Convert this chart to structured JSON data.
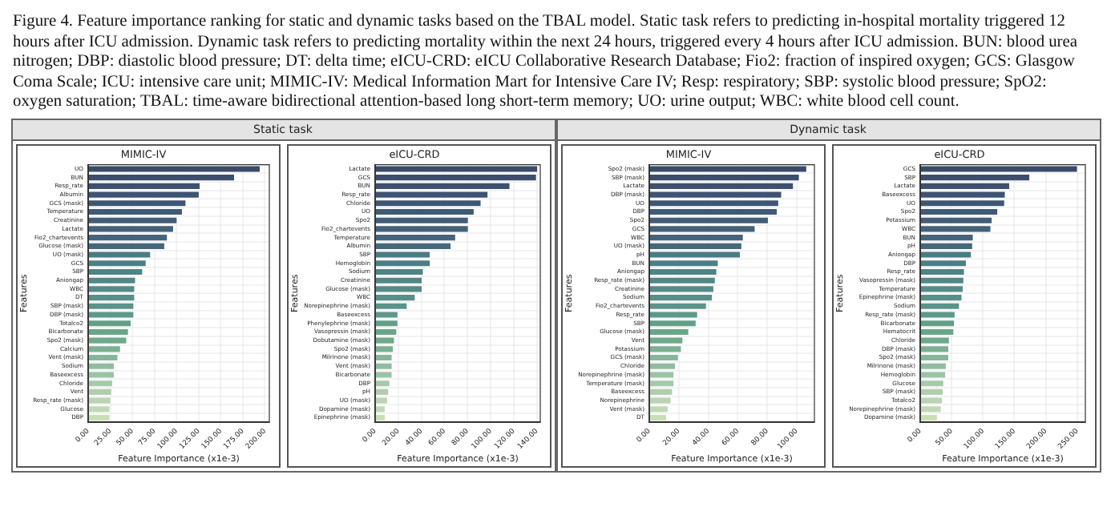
{
  "chart_data": [
    {
      "type": "bar",
      "orientation": "horizontal",
      "subtitle": "Static task",
      "title": "MIMIC-IV",
      "xlabel": "Feature Importance (x1e-3)",
      "ylabel": "Features",
      "grid": true,
      "legend": false,
      "annotations": [
        "Figure 4. Feature importance ranking for static and dynamic tasks based on the TBAL model. Static task refers to predicting in-hospital mortality triggered 12 hours after ICU admission. Dynamic task refers to predicting mortality within the next 24 hours, triggered every 4 hours after ICU admission. BUN: blood urea nitrogen; DBP: diastolic blood pressure; DT: delta time; eICU-CRD: eICU Collaborative Research Database; Fio2: fraction of inspired oxygen; GCS: Glasgow Coma Scale; ICU: intensive care unit; MIMIC-IV: Medical Information Mart for Intensive Care IV; Resp: respiratory; SBP: systolic blood pressure; SpO2: oxygen saturation; TBAL: time-aware bidirectional attention-based long short-term memory; UO: urine output; WBC: white blood cell count."
      ],
      "categories": [
        "UO",
        "BUN",
        "Resp_rate",
        "Albumin",
        "GCS (mask)",
        "Temperature",
        "Creatinine",
        "Lactate",
        "Fio2_chartevents",
        "Glucose (mask)",
        "UO (mask)",
        "GCS",
        "SBP",
        "Aniongap",
        "WBC",
        "DT",
        "SBP (mask)",
        "DBP (mask)",
        "Totalco2",
        "Bicarbonate",
        "Spo2 (mask)",
        "Calcium",
        "Vent (mask)",
        "Sodium",
        "Baseexcess",
        "Chloride",
        "Vent",
        "Resp_rate (mask)",
        "Glucose",
        "DBP"
      ],
      "values": [
        195,
        166,
        127,
        126,
        111,
        107,
        101,
        97,
        90,
        87,
        71,
        66,
        62,
        54,
        53,
        53,
        52,
        52,
        49,
        46,
        44,
        37,
        34,
        30,
        30,
        28,
        27,
        26,
        25,
        25
      ],
      "colors": [
        "#3b4a6b",
        "#3c4d6d",
        "#3d506f",
        "#3e5371",
        "#3f5673",
        "#405a75",
        "#425d77",
        "#436179",
        "#44647b",
        "#45687d",
        "#4a7b83",
        "#4c7f84",
        "#4f8385",
        "#528786",
        "#558b87",
        "#588f88",
        "#5b9389",
        "#5f978a",
        "#63a08a",
        "#6aa58a",
        "#6fa98a",
        "#7bb093",
        "#86b69a",
        "#91bca0",
        "#9cc2a6",
        "#a6c8ab",
        "#b0cdaf",
        "#bad3b2",
        "#c2d8b4",
        "#c9deb6"
      ],
      "xlim": [
        0,
        205
      ],
      "xticks": [
        {
          "value": 0,
          "label": "0.00"
        },
        {
          "value": 25,
          "label": "25.00"
        },
        {
          "value": 50,
          "label": "50.00"
        },
        {
          "value": 75,
          "label": "75.00"
        },
        {
          "value": 100,
          "label": "100.00"
        },
        {
          "value": 125,
          "label": "125.00"
        },
        {
          "value": 150,
          "label": "150.00"
        },
        {
          "value": 175,
          "label": "175.00"
        },
        {
          "value": 200,
          "label": "200.00"
        }
      ]
    },
    {
      "type": "bar",
      "orientation": "horizontal",
      "title": "eICU-CRD",
      "xlabel": "Feature Importance (x1e-3)",
      "ylabel": "Features",
      "grid": true,
      "legend": false,
      "categories": [
        "Lactate",
        "GCS",
        "BUN",
        "Resp_rate",
        "Chloride",
        "UO",
        "Spo2",
        "Fio2_chartevents",
        "Temperature",
        "Albumin",
        "SBP",
        "Hemoglobin",
        "Sodium",
        "Creatinine",
        "Glucose (mask)",
        "WBC",
        "Norepinephrine (mask)",
        "Baseexcess",
        "Phenylephrine (mask)",
        "Vasopressin (mask)",
        "Dobutamine (mask)",
        "Spo2 (mask)",
        "Milrinone (mask)",
        "Vent (mask)",
        "Bicarbonate",
        "DBP",
        "pH",
        "UO (mask)",
        "Dopamine (mask)",
        "Epinephrine (mask)"
      ],
      "values": [
        141,
        140,
        117,
        98,
        92,
        86,
        81,
        81,
        70,
        66,
        48,
        48,
        42,
        41,
        41,
        35,
        28,
        20,
        20,
        19,
        17,
        16,
        15,
        15,
        15,
        13,
        12,
        11,
        9,
        9
      ],
      "colors": [
        "#3b4a6b",
        "#3c4d6d",
        "#3d506f",
        "#3e5371",
        "#3f5673",
        "#405a75",
        "#425d77",
        "#436179",
        "#44647b",
        "#45687d",
        "#4a7b83",
        "#4c7f84",
        "#4f8385",
        "#528786",
        "#558b87",
        "#588f88",
        "#5b9389",
        "#5f978a",
        "#63a08a",
        "#6aa58a",
        "#6fa98a",
        "#7bb093",
        "#86b69a",
        "#91bca0",
        "#9cc2a6",
        "#a6c8ab",
        "#b0cdaf",
        "#bad3b2",
        "#c2d8b4",
        "#c9deb6"
      ],
      "xlim": [
        0,
        143
      ],
      "xticks": [
        {
          "value": 0,
          "label": "0.00"
        },
        {
          "value": 20,
          "label": "20.00"
        },
        {
          "value": 40,
          "label": "40.00"
        },
        {
          "value": 60,
          "label": "60.00"
        },
        {
          "value": 80,
          "label": "80.00"
        },
        {
          "value": 100,
          "label": "100.00"
        },
        {
          "value": 120,
          "label": "120.00"
        },
        {
          "value": 140,
          "label": "140.00"
        }
      ]
    },
    {
      "type": "bar",
      "orientation": "horizontal",
      "subtitle": "Dynamic task",
      "title": "MIMIC-IV",
      "xlabel": "Feature Importance (x1e-3)",
      "ylabel": "Features",
      "grid": true,
      "legend": false,
      "categories": [
        "Spo2 (mask)",
        "SBP (mask)",
        "Lactate",
        "DBP (mask)",
        "UO",
        "DBP",
        "Spo2",
        "GCS",
        "WBC",
        "UO (mask)",
        "pH",
        "BUN",
        "Aniongap",
        "Resp_rate (mask)",
        "Creatinine",
        "Sodium",
        "Fio2_chartevents",
        "Resp_rate",
        "SBP",
        "Glucose (mask)",
        "Vent",
        "Potassium",
        "GCS (mask)",
        "Chloride",
        "Norepinephrine (mask)",
        "Temperature (mask)",
        "Baseexcess",
        "Norepinephrine",
        "Vent (mask)",
        "DT"
      ],
      "values": [
        107,
        102,
        98,
        90,
        88,
        87,
        81,
        72,
        64,
        63,
        62,
        47,
        46,
        45,
        44,
        43,
        39,
        33,
        32,
        27,
        23,
        22,
        20,
        18,
        17,
        17,
        16,
        15,
        13,
        12
      ],
      "colors": [
        "#3b4a6b",
        "#3c4d6d",
        "#3d506f",
        "#3e5371",
        "#3f5673",
        "#405a75",
        "#425d77",
        "#436179",
        "#44647b",
        "#45687d",
        "#4a7b83",
        "#4c7f84",
        "#4f8385",
        "#528786",
        "#558b87",
        "#588f88",
        "#5b9389",
        "#5f978a",
        "#63a08a",
        "#6aa58a",
        "#6fa98a",
        "#7bb093",
        "#86b69a",
        "#91bca0",
        "#9cc2a6",
        "#a6c8ab",
        "#b0cdaf",
        "#bad3b2",
        "#c2d8b4",
        "#c9deb6"
      ],
      "xlim": [
        0,
        112
      ],
      "xticks": [
        {
          "value": 0,
          "label": "0.00"
        },
        {
          "value": 20,
          "label": "20.00"
        },
        {
          "value": 40,
          "label": "40.00"
        },
        {
          "value": 60,
          "label": "60.00"
        },
        {
          "value": 80,
          "label": "80.00"
        },
        {
          "value": 100,
          "label": "100.00"
        }
      ]
    },
    {
      "type": "bar",
      "orientation": "horizontal",
      "title": "eICU-CRD",
      "xlabel": "Feature Importance (x1e-3)",
      "ylabel": "Features",
      "grid": true,
      "legend": false,
      "categories": [
        "GCS",
        "SBP",
        "Lactate",
        "Baseexcess",
        "UO",
        "Spo2",
        "Potassium",
        "WBC",
        "BUN",
        "pH",
        "Aniongap",
        "DBP",
        "Resp_rate",
        "Vasopressin (mask)",
        "Temperature",
        "Epinephrine (mask)",
        "Sodium",
        "Resp_rate (mask)",
        "Bicarbonate",
        "Hematocrit",
        "Chloride",
        "DBP (mask)",
        "Spo2 (mask)",
        "Milrinone (mask)",
        "Hemoglobin",
        "Glucose",
        "SBP (mask)",
        "Totalco2",
        "Norepinephrine (mask)",
        "Dopamine (mask)"
      ],
      "values": [
        251,
        175,
        143,
        136,
        135,
        124,
        115,
        113,
        85,
        84,
        82,
        74,
        71,
        70,
        69,
        67,
        63,
        56,
        55,
        54,
        47,
        46,
        46,
        42,
        41,
        38,
        37,
        36,
        34,
        28
      ],
      "colors": [
        "#3b4a6b",
        "#3c4d6d",
        "#3d506f",
        "#3e5371",
        "#3f5673",
        "#405a75",
        "#425d77",
        "#436179",
        "#44647b",
        "#45687d",
        "#4a7b83",
        "#4c7f84",
        "#4f8385",
        "#528786",
        "#558b87",
        "#588f88",
        "#5b9389",
        "#5f978a",
        "#63a08a",
        "#6aa58a",
        "#6fa98a",
        "#7bb093",
        "#86b69a",
        "#91bca0",
        "#9cc2a6",
        "#a6c8ab",
        "#b0cdaf",
        "#bad3b2",
        "#c2d8b4",
        "#c9deb6"
      ],
      "xlim": [
        0,
        263
      ],
      "xticks": [
        {
          "value": 0,
          "label": "0.00"
        },
        {
          "value": 50,
          "label": "50.00"
        },
        {
          "value": 100,
          "label": "100.00"
        },
        {
          "value": 150,
          "label": "150.00"
        },
        {
          "value": 200,
          "label": "200.00"
        },
        {
          "value": 250,
          "label": "250.00"
        }
      ]
    }
  ]
}
